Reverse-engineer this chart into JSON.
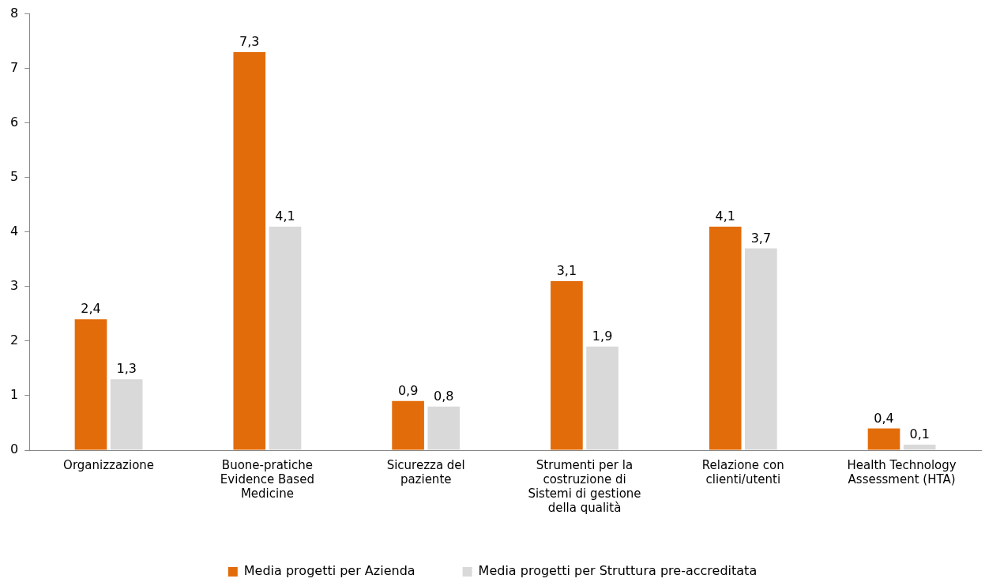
{
  "chart_data": {
    "type": "bar",
    "categories": [
      "Organizzazione",
      "Buone-pratiche Evidence Based Medicine",
      "Sicurezza del paziente",
      "Strumenti per la costruzione di Sistemi di gestione della qualità",
      "Relazione con clienti/utenti",
      "Health Technology Assessment (HTA)"
    ],
    "series": [
      {
        "name": "Media progetti per Azienda",
        "color": "#e36c0a",
        "values": [
          2.4,
          7.3,
          0.9,
          3.1,
          4.1,
          0.4
        ],
        "value_labels": [
          "2,4",
          "7,3",
          "0,9",
          "3,1",
          "4,1",
          "0,4"
        ]
      },
      {
        "name": "Media progetti per Struttura pre-accreditata",
        "color": "#d9d9d9",
        "values": [
          1.3,
          4.1,
          0.8,
          1.9,
          3.7,
          0.1
        ],
        "value_labels": [
          "1,3",
          "4,1",
          "0,8",
          "1,9",
          "3,7",
          "0,1"
        ]
      }
    ],
    "ylim": [
      0,
      8
    ],
    "yticks": [
      0,
      1,
      2,
      3,
      4,
      5,
      6,
      7,
      8
    ],
    "grid": false,
    "legend": "bottom"
  }
}
